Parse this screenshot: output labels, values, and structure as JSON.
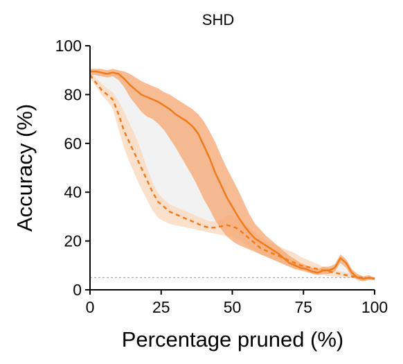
{
  "chart_data": {
    "type": "line",
    "title": "SHD",
    "xlabel": "Percentage pruned (%)",
    "ylabel": "Accuracy (%)",
    "xlim": [
      0,
      100
    ],
    "ylim": [
      0,
      100
    ],
    "xticks": [
      "0",
      "25",
      "50",
      "75",
      "100"
    ],
    "yticks": [
      "0",
      "20",
      "40",
      "60",
      "80",
      "100"
    ],
    "grid": false,
    "legend": "none",
    "chance_level": 5,
    "colors": {
      "line": "#f07b1c",
      "band_solid": "#f4a56f",
      "band_dashed": "#fadcc2",
      "gap_fill": "#e8e8e8",
      "chance": "#999999"
    },
    "series": [
      {
        "style": "solid",
        "x": [
          0,
          2,
          4,
          6,
          8,
          10,
          12,
          14,
          16,
          18,
          20,
          22,
          24,
          26,
          28,
          30,
          32,
          34,
          36,
          38,
          40,
          42,
          44,
          46,
          48,
          50,
          52,
          54,
          56,
          58,
          60,
          62,
          64,
          66,
          68,
          70,
          72,
          74,
          76,
          78,
          80,
          82,
          84,
          86,
          88,
          90,
          92,
          94,
          96,
          98,
          100
        ],
        "y": [
          89.5,
          89.5,
          89,
          88.5,
          89,
          88.5,
          86.5,
          84,
          82,
          80,
          79,
          78,
          77,
          75.5,
          74,
          72,
          70.5,
          69,
          67,
          64,
          59,
          54,
          48,
          43,
          38,
          34,
          30,
          26.5,
          23.5,
          21,
          19.5,
          18,
          16.5,
          15,
          13,
          11,
          10,
          9,
          8.5,
          7.5,
          7,
          8,
          8,
          9,
          13,
          11,
          7,
          5,
          4.5,
          5,
          4.5
        ],
        "lower": [
          88,
          88,
          87.5,
          87,
          87.5,
          86,
          83,
          79,
          76,
          73,
          71,
          70,
          68,
          65.5,
          62,
          58.5,
          54.5,
          50.5,
          46.5,
          42,
          37,
          33,
          28.5,
          25,
          22,
          20,
          18.5,
          17.5,
          16.5,
          15.5,
          14.5,
          13.5,
          12.5,
          11.5,
          10.5,
          9.5,
          8.5,
          8,
          7.5,
          6.5,
          6,
          6.5,
          6.5,
          7.5,
          11,
          9,
          5.5,
          4,
          3.5,
          4,
          4
        ],
        "upper": [
          90.5,
          90.5,
          90.5,
          90,
          90.5,
          90,
          89.5,
          88.5,
          87,
          85.5,
          84.5,
          83.5,
          82.5,
          81,
          80,
          78.5,
          77,
          75.5,
          74,
          72,
          69,
          65,
          60.5,
          55,
          50,
          45.5,
          41,
          36,
          31,
          27,
          24.5,
          22,
          20,
          18,
          16,
          14,
          12.5,
          11,
          10,
          9,
          8.5,
          9.5,
          9.5,
          10.5,
          14.5,
          12.5,
          8.5,
          6.5,
          5.5,
          6,
          5
        ]
      },
      {
        "style": "dashed",
        "x": [
          0,
          2,
          4,
          6,
          8,
          10,
          12,
          14,
          16,
          18,
          20,
          22,
          24,
          26,
          28,
          30,
          32,
          34,
          36,
          38,
          40,
          42,
          44,
          46,
          48,
          50,
          52,
          54,
          56,
          58,
          60,
          62,
          64,
          66,
          68,
          70,
          72,
          74,
          76,
          78,
          80,
          82,
          84,
          86,
          88,
          90,
          92,
          94,
          96,
          98,
          100
        ],
        "y": [
          88,
          85,
          82,
          80,
          78,
          72,
          65,
          60,
          55,
          50,
          45,
          40,
          36,
          34,
          32,
          31,
          30,
          29,
          28,
          27,
          26,
          25.5,
          25.5,
          26,
          26.5,
          26,
          25,
          23,
          21,
          19,
          17,
          16,
          15,
          14,
          13,
          12,
          11,
          10,
          9.5,
          9,
          8.5,
          8,
          7.5,
          7,
          6.5,
          6,
          5.5,
          5.2,
          5,
          4.8,
          4.5
        ],
        "lower": [
          87,
          83.5,
          80,
          77.5,
          74,
          66,
          58,
          52,
          46.5,
          41.5,
          37,
          32.5,
          29.5,
          28,
          27,
          26.5,
          26,
          25.5,
          25,
          24.5,
          24,
          23.5,
          23,
          22.5,
          22,
          21.5,
          20.5,
          19,
          17.5,
          16,
          14.5,
          13.5,
          12.5,
          11.5,
          10.5,
          9.5,
          8.5,
          7.8,
          7.2,
          6.8,
          6.4,
          6,
          5.7,
          5.4,
          5.2,
          5,
          4.8,
          4.6,
          4.5,
          4.4,
          4.3
        ],
        "upper": [
          89,
          87,
          84.5,
          82.5,
          81,
          77.5,
          73,
          68,
          63,
          57,
          50,
          44,
          39.5,
          37,
          35,
          34,
          33,
          32,
          31,
          30,
          29,
          28,
          28,
          29,
          30.5,
          30.5,
          29.5,
          27.5,
          25.5,
          23.5,
          21.5,
          20,
          19,
          18,
          17,
          16,
          15,
          13.5,
          12.5,
          11.5,
          10.5,
          9.5,
          8.8,
          8.2,
          7.6,
          7,
          6.4,
          5.9,
          5.5,
          5.2,
          4.8
        ]
      }
    ]
  }
}
